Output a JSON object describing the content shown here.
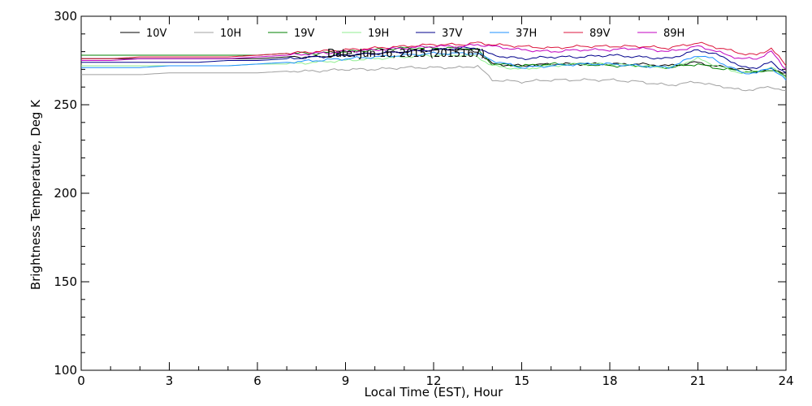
{
  "chart_data": {
    "type": "line",
    "subtitle": "Date: Jun 16, 2015 (2015167)",
    "xlabel": "Local Time (EST), Hour",
    "ylabel": "Brightness Temperature, Deg K",
    "xlim": [
      0,
      24
    ],
    "ylim": [
      100,
      300
    ],
    "x_ticks": [
      0,
      3,
      6,
      9,
      12,
      15,
      18,
      21,
      24
    ],
    "x_tick_labels": [
      "0",
      "3",
      "6",
      "9",
      "12",
      "15",
      "18",
      "21",
      "24"
    ],
    "y_ticks": [
      100,
      150,
      200,
      250,
      300
    ],
    "y_tick_labels": [
      "100",
      "150",
      "200",
      "250",
      "300"
    ],
    "grid": false,
    "legend_position": "top",
    "x": [
      0,
      1,
      2,
      3,
      4,
      5,
      6,
      7,
      8,
      9,
      10,
      11,
      12,
      13,
      13.5,
      14,
      15,
      16,
      17,
      18,
      19,
      20,
      21,
      21.5,
      22,
      22.5,
      23,
      23.5,
      24
    ],
    "series": [
      {
        "name": "10V",
        "color": "#000000",
        "values": [
          276,
          276,
          276,
          276,
          276,
          276,
          276,
          277,
          277,
          278,
          279,
          280,
          281,
          281,
          280,
          273,
          272,
          273,
          273,
          273,
          273,
          272,
          274,
          272,
          271,
          270,
          269,
          270,
          268
        ]
      },
      {
        "name": "10H",
        "color": "#a0a0a0",
        "values": [
          267,
          267,
          267,
          268,
          268,
          268,
          268,
          269,
          269,
          270,
          270,
          271,
          271,
          271,
          272,
          264,
          263,
          264,
          264,
          264,
          263,
          261,
          263,
          261,
          260,
          258,
          259,
          260,
          258
        ]
      },
      {
        "name": "19V",
        "color": "#008000",
        "values": [
          278,
          278,
          278,
          278,
          278,
          278,
          278,
          279,
          279,
          280,
          281,
          282,
          282,
          282,
          281,
          273,
          272,
          273,
          273,
          272,
          272,
          271,
          273,
          271,
          270,
          269,
          268,
          270,
          266
        ]
      },
      {
        "name": "19H",
        "color": "#90ee90",
        "values": [
          272,
          272,
          272,
          272,
          272,
          272,
          273,
          273,
          274,
          275,
          276,
          277,
          278,
          278,
          277,
          272,
          270,
          272,
          273,
          273,
          272,
          271,
          276,
          273,
          270,
          268,
          269,
          271,
          265
        ]
      },
      {
        "name": "37V",
        "color": "#00008b",
        "values": [
          274,
          274,
          274,
          274,
          274,
          275,
          275,
          276,
          277,
          278,
          279,
          280,
          281,
          282,
          282,
          278,
          276,
          277,
          277,
          278,
          277,
          276,
          281,
          279,
          276,
          271,
          271,
          274,
          268
        ]
      },
      {
        "name": "37H",
        "color": "#1e90ff",
        "values": [
          271,
          271,
          271,
          272,
          272,
          272,
          273,
          274,
          275,
          276,
          277,
          278,
          279,
          279,
          279,
          275,
          271,
          272,
          273,
          273,
          272,
          271,
          278,
          276,
          272,
          268,
          268,
          271,
          264
        ]
      },
      {
        "name": "89V",
        "color": "#dc143c",
        "values": [
          276,
          276,
          277,
          277,
          277,
          277,
          278,
          279,
          280,
          281,
          282,
          283,
          284,
          284,
          285,
          284,
          283,
          282,
          283,
          283,
          283,
          282,
          285,
          283,
          281,
          279,
          278,
          282,
          272
        ]
      },
      {
        "name": "89H",
        "color": "#c000c0",
        "values": [
          275,
          275,
          276,
          276,
          276,
          276,
          277,
          278,
          279,
          280,
          281,
          282,
          283,
          283,
          284,
          283,
          281,
          280,
          281,
          281,
          282,
          280,
          283,
          281,
          278,
          276,
          276,
          280,
          270
        ]
      }
    ]
  }
}
